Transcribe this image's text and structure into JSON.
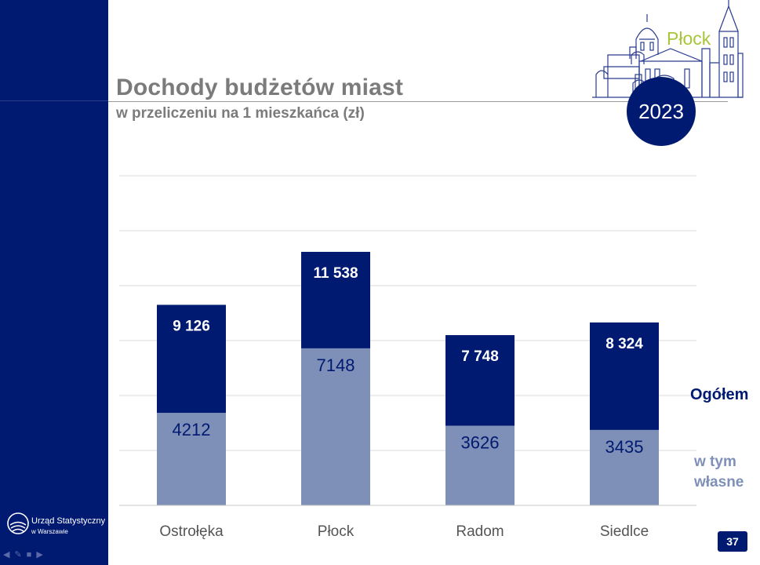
{
  "header": {
    "title": "Dochody budżetów miast",
    "subtitle": "w przeliczeniu na 1 mieszkańca (zł)",
    "city": "Płock",
    "year": "2023",
    "page_number": "37"
  },
  "branding": {
    "line1": "Urząd Statystyczny",
    "line2": "w Warszawie"
  },
  "legend": {
    "total": "Ogółem",
    "own": "w tym własne"
  },
  "colors": {
    "total": "#001a72",
    "own": "#7f90b8",
    "accent_green": "#a8c63a"
  },
  "chart_data": {
    "type": "bar",
    "categories": [
      "Ostrołęka",
      "Płock",
      "Radom",
      "Siedlce"
    ],
    "series": [
      {
        "name": "Ogółem",
        "values": [
          9126,
          11538,
          7748,
          8324
        ],
        "labels": [
          "9 126",
          "11 538",
          "7 748",
          "8 324"
        ]
      },
      {
        "name": "w tym własne",
        "values": [
          4212,
          7148,
          3626,
          3435
        ],
        "labels": [
          "4212",
          "7148",
          "3626",
          "3435"
        ]
      }
    ],
    "ylim": [
      0,
      15000
    ],
    "grid": true
  }
}
